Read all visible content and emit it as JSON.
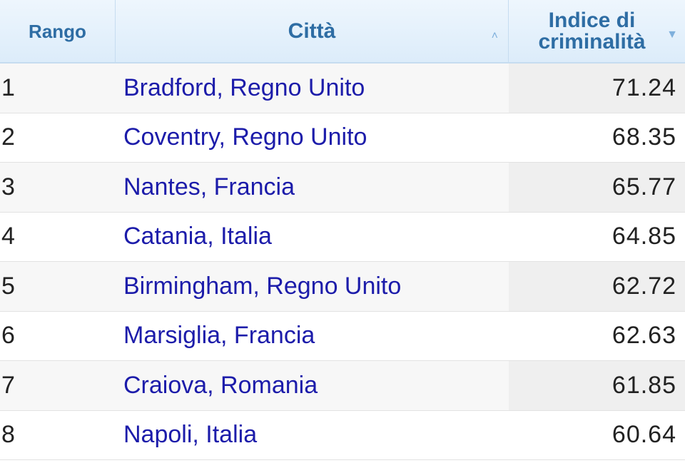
{
  "table": {
    "headers": {
      "rank": "Rango",
      "city": "Città",
      "index_line1": "Indice di",
      "index_line2": "criminalità"
    },
    "sort_icons": {
      "city": "chevron-up-icon",
      "index": "caret-down-icon"
    },
    "colors": {
      "header_text": "#2e6da4",
      "link": "#1c1caa"
    },
    "rows": [
      {
        "rank": "1",
        "city": "Bradford, Regno Unito",
        "index": "71.24"
      },
      {
        "rank": "2",
        "city": "Coventry, Regno Unito",
        "index": "68.35"
      },
      {
        "rank": "3",
        "city": "Nantes, Francia",
        "index": "65.77"
      },
      {
        "rank": "4",
        "city": "Catania, Italia",
        "index": "64.85"
      },
      {
        "rank": "5",
        "city": "Birmingham, Regno Unito",
        "index": "62.72"
      },
      {
        "rank": "6",
        "city": "Marsiglia, Francia",
        "index": "62.63"
      },
      {
        "rank": "7",
        "city": "Craiova, Romania",
        "index": "61.85"
      },
      {
        "rank": "8",
        "city": "Napoli, Italia",
        "index": "60.64"
      }
    ]
  }
}
